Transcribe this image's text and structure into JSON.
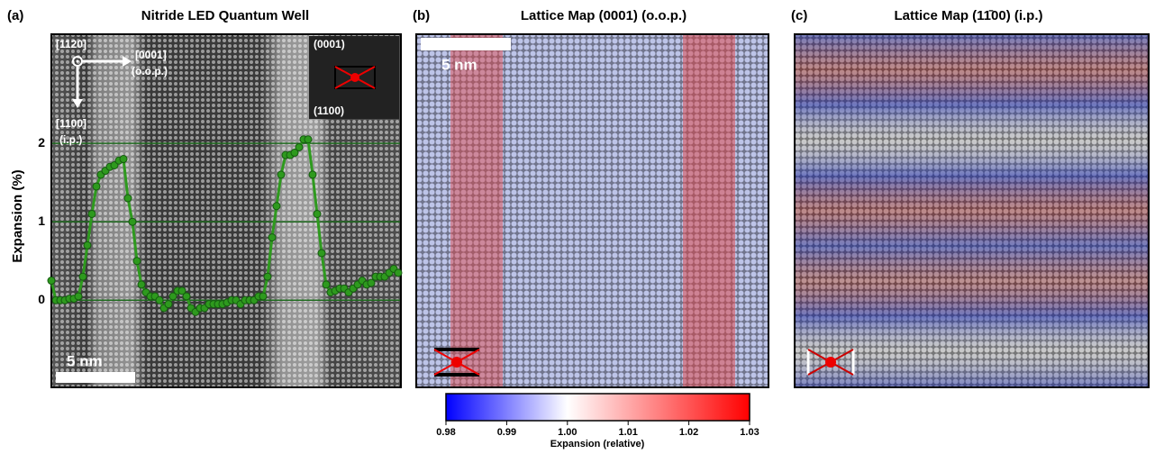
{
  "chart_data": [
    {
      "type": "line",
      "panel": "(a)",
      "title": "Nitride LED  Quantum Well",
      "ylabel": "Expansion (%)",
      "ylim": [
        -1.11,
        3.39
      ],
      "yticks": [
        0,
        1,
        2
      ],
      "grid": true,
      "color": "#2e9a1e",
      "values": [
        0.25,
        0.0,
        0.0,
        0.0,
        0.02,
        0.02,
        0.05,
        0.3,
        0.7,
        1.1,
        1.45,
        1.6,
        1.65,
        1.7,
        1.72,
        1.78,
        1.8,
        1.3,
        1.0,
        0.5,
        0.2,
        0.1,
        0.05,
        0.05,
        0.0,
        -0.1,
        -0.05,
        0.05,
        0.12,
        0.12,
        0.05,
        -0.1,
        -0.15,
        -0.1,
        -0.1,
        -0.05,
        -0.05,
        -0.05,
        -0.05,
        -0.03,
        0.0,
        0.0,
        -0.05,
        0.0,
        0.0,
        0.0,
        0.05,
        0.05,
        0.3,
        0.8,
        1.2,
        1.6,
        1.85,
        1.85,
        1.88,
        1.95,
        2.05,
        2.05,
        1.6,
        1.1,
        0.6,
        0.2,
        0.1,
        0.12,
        0.15,
        0.15,
        0.1,
        0.15,
        0.2,
        0.25,
        0.2,
        0.22,
        0.3,
        0.3,
        0.3,
        0.35,
        0.4,
        0.35
      ],
      "annotations": [
        "[1120]",
        "[0001]",
        "(o.o.p.)",
        "[1100]",
        "(i.p.)",
        "(0001)",
        "(1100)",
        "5 nm"
      ]
    },
    {
      "type": "colorbar",
      "xlabel": "Expansion (relative)",
      "xlim": [
        0.98,
        1.03
      ],
      "xticks": [
        0.98,
        0.99,
        {
          "value": 1.0,
          "label": "1.00"
        },
        1.01,
        1.02,
        1.03
      ],
      "colors": [
        "#0000ff",
        "#ffffff",
        "#ff0000"
      ]
    }
  ],
  "panels": [
    {
      "label": "(b)",
      "title": "Lattice Map (0001) (o.o.p.)",
      "annotations": [
        "5 nm"
      ]
    },
    {
      "label": "(c)",
      "title": "Lattice Map (11̄00) (i.p.)"
    }
  ]
}
